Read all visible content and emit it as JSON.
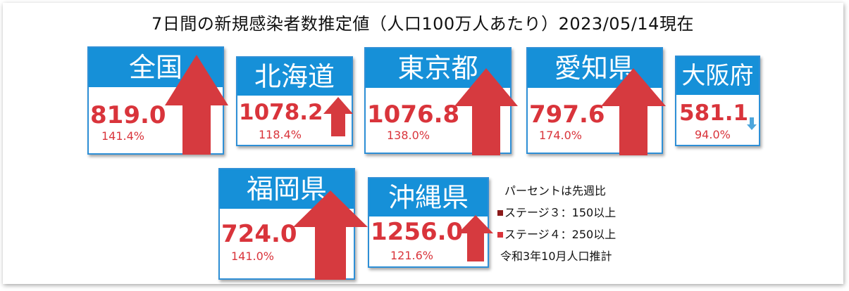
{
  "title": "7日間の新規感染者数推定値（人口100万人あたり）2023/05/14現在",
  "colors": {
    "header_blue": "#1690d8",
    "value_red": "#d9343b",
    "arrow_red": "#d63a3f",
    "arrow_blue": "#4da6dc",
    "stage3": "#8b1a1a",
    "stage4": "#d9343b"
  },
  "cards": {
    "zenkoku": {
      "name": "全国",
      "value": "819.0",
      "pct": "141.4%",
      "trend": "up"
    },
    "hokkaido": {
      "name": "北海道",
      "value": "1078.2",
      "pct": "118.4%",
      "trend": "up"
    },
    "tokyo": {
      "name": "東京都",
      "value": "1076.8",
      "pct": "138.0%",
      "trend": "up"
    },
    "aichi": {
      "name": "愛知県",
      "value": "797.6",
      "pct": "174.0%",
      "trend": "up"
    },
    "osaka": {
      "name": "大阪府",
      "value": "581.1",
      "pct": "94.0%",
      "trend": "down"
    },
    "fukuoka": {
      "name": "福岡県",
      "value": "724.0",
      "pct": "141.0%",
      "trend": "up"
    },
    "okinawa": {
      "name": "沖縄県",
      "value": "1256.0",
      "pct": "121.6%",
      "trend": "up"
    }
  },
  "legend": {
    "line1": "パーセントは先週比",
    "line2": "ステージ３：150以上",
    "line3": "ステージ４：250以上",
    "line4": "令和3年10月人口推計"
  }
}
